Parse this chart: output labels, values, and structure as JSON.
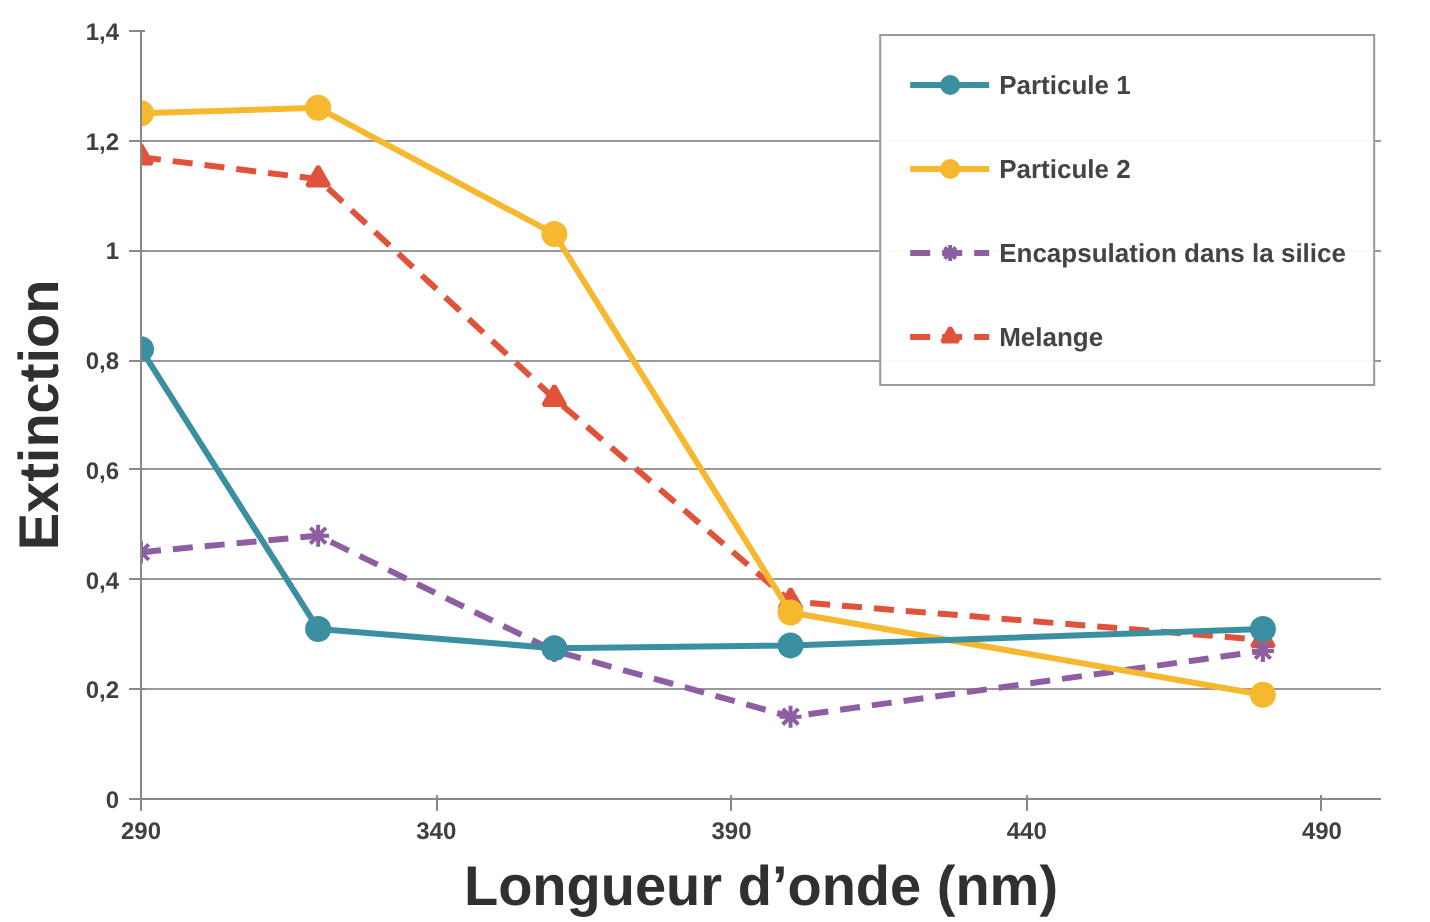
{
  "chart_data": {
    "type": "line",
    "xlabel": "Longueur d’onde (nm)",
    "ylabel": "Extinction",
    "x": [
      290,
      320,
      360,
      400,
      480
    ],
    "xlim": [
      290,
      500
    ],
    "xticks": [
      290,
      340,
      390,
      440,
      490
    ],
    "ylim": [
      0,
      1.4
    ],
    "yticks": [
      {
        "value": 0,
        "label": "0"
      },
      {
        "value": 0.2,
        "label": "0,2"
      },
      {
        "value": 0.4,
        "label": "0,4"
      },
      {
        "value": 0.6,
        "label": "0,6"
      },
      {
        "value": 0.8,
        "label": "0,8"
      },
      {
        "value": 1,
        "label": "1"
      },
      {
        "value": 1.2,
        "label": "1,2"
      },
      {
        "value": 1.4,
        "label": "1,4"
      }
    ],
    "grid": "y",
    "legend": "top right",
    "series": [
      {
        "name": "Particule 1",
        "color": "#3a8fa0",
        "marker": "circle",
        "line_style": "solid",
        "values": [
          0.82,
          0.31,
          0.275,
          0.28,
          0.31
        ]
      },
      {
        "name": "Particule 2",
        "color": "#f5b82e",
        "marker": "circle",
        "line_style": "solid",
        "values": [
          1.25,
          1.26,
          1.03,
          0.34,
          0.19
        ]
      },
      {
        "name": "Encapsulation dans la silice",
        "color": "#8e5ea2",
        "marker": "cross",
        "line_style": "dashed",
        "values": [
          0.45,
          0.48,
          0.27,
          0.15,
          0.27
        ]
      },
      {
        "name": "Melange",
        "color": "#e0533a",
        "marker": "triangle",
        "line_style": "dashed",
        "values": [
          1.17,
          1.13,
          0.73,
          0.36,
          0.29
        ]
      }
    ]
  }
}
